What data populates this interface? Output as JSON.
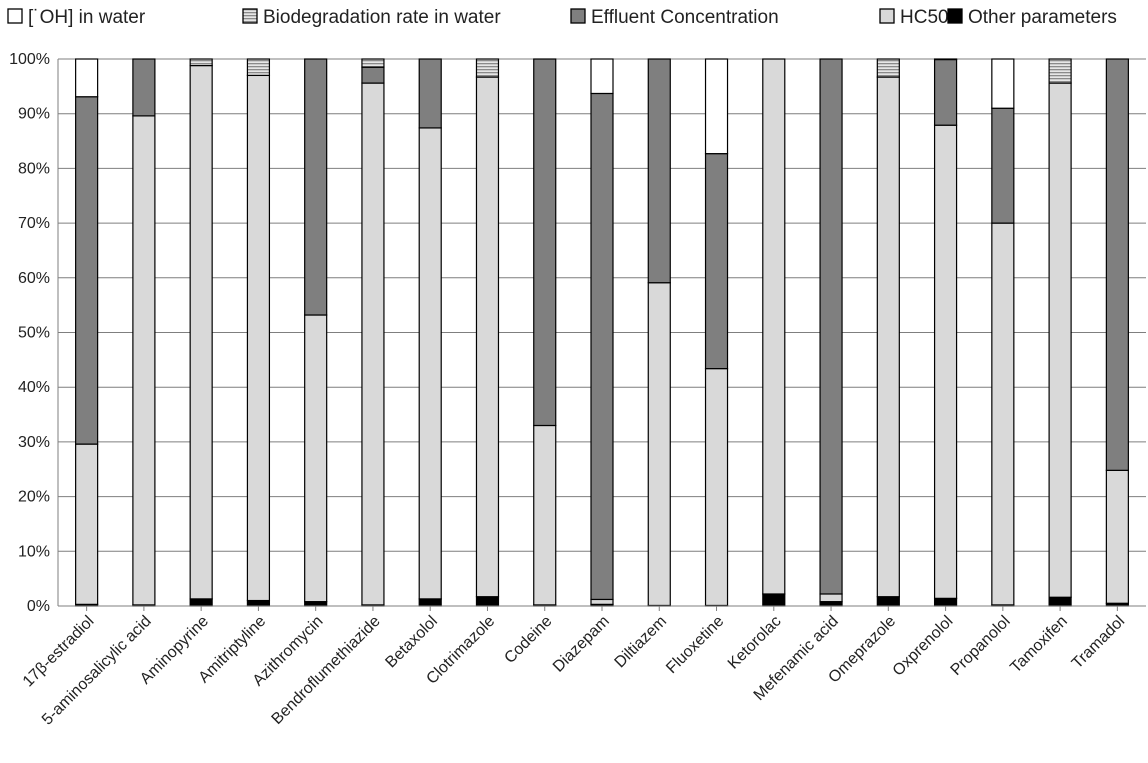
{
  "colors": {
    "oh": "#ffffff",
    "biodeg": "#bdbdbd",
    "effluent": "#7f7f7f",
    "hc50": "#d9d9d9",
    "other": "#000000",
    "outline": "#000000",
    "grid": "#7f7f7f"
  },
  "chart_data": {
    "type": "bar",
    "stacked": true,
    "title": "",
    "xlabel": "",
    "ylabel": "",
    "ylim": [
      0,
      100
    ],
    "y_ticks": [
      "0%",
      "10%",
      "20%",
      "30%",
      "40%",
      "50%",
      "60%",
      "70%",
      "80%",
      "90%",
      "100%"
    ],
    "grid": true,
    "legend_position": "top",
    "categories": [
      "17β-estradiol",
      "5-aminosalicylic acid",
      "Aminopyrine",
      "Amitriptyline",
      "Azithromycin",
      "Bendroflumethiazide",
      "Betaxolol",
      "Clotrimazole",
      "Codeine",
      "Diazepam",
      "Diltiazem",
      "Fluoxetine",
      "Ketorolac",
      "Mefenamic acid",
      "Omeprazole",
      "Oxprenolol",
      "Propanolol",
      "Tamoxifen",
      "Tramadol"
    ],
    "series": [
      {
        "name": "Other parameters",
        "key": "other",
        "pattern": "solid",
        "values": [
          0.3,
          0.2,
          1.3,
          1.0,
          0.8,
          0.2,
          1.3,
          1.7,
          0.2,
          0.3,
          0.1,
          0.1,
          2.2,
          0.8,
          1.7,
          1.4,
          0.2,
          1.6,
          0.5
        ]
      },
      {
        "name": "HC50",
        "key": "hc50",
        "pattern": "solid",
        "values": [
          29.3,
          89.4,
          97.5,
          96.0,
          52.4,
          95.4,
          86.1,
          95.0,
          32.8,
          0.9,
          59.0,
          43.3,
          97.8,
          1.4,
          95.0,
          86.5,
          69.8,
          94.0,
          24.3
        ]
      },
      {
        "name": "Effluent Concentration",
        "key": "effluent",
        "pattern": "solid",
        "values": [
          63.5,
          10.4,
          0,
          0,
          46.8,
          2.9,
          12.6,
          0,
          67.0,
          92.5,
          40.9,
          39.3,
          0,
          97.8,
          0,
          12.0,
          21.0,
          0,
          75.2
        ]
      },
      {
        "name": "Biodegradation rate in water",
        "key": "biodeg",
        "pattern": "striped",
        "values": [
          0,
          0,
          1.2,
          3.0,
          0,
          1.5,
          0,
          3.3,
          0,
          0,
          0,
          0,
          0,
          0,
          3.3,
          0.1,
          0,
          4.4,
          0
        ]
      },
      {
        "name": "[˙OH] in water",
        "key": "oh",
        "pattern": "solid",
        "values": [
          6.9,
          0,
          0,
          0,
          0,
          0,
          0,
          0,
          0,
          6.3,
          0,
          17.3,
          0,
          0,
          0,
          0,
          9.0,
          0,
          0
        ]
      }
    ]
  },
  "legend": [
    {
      "key": "oh",
      "label": "[˙OH] in water"
    },
    {
      "key": "biodeg",
      "label": "Biodegradation rate in water"
    },
    {
      "key": "effluent",
      "label": "Effluent Concentration"
    },
    {
      "key": "hc50",
      "label": "HC50"
    },
    {
      "key": "other",
      "label": "Other parameters"
    }
  ]
}
